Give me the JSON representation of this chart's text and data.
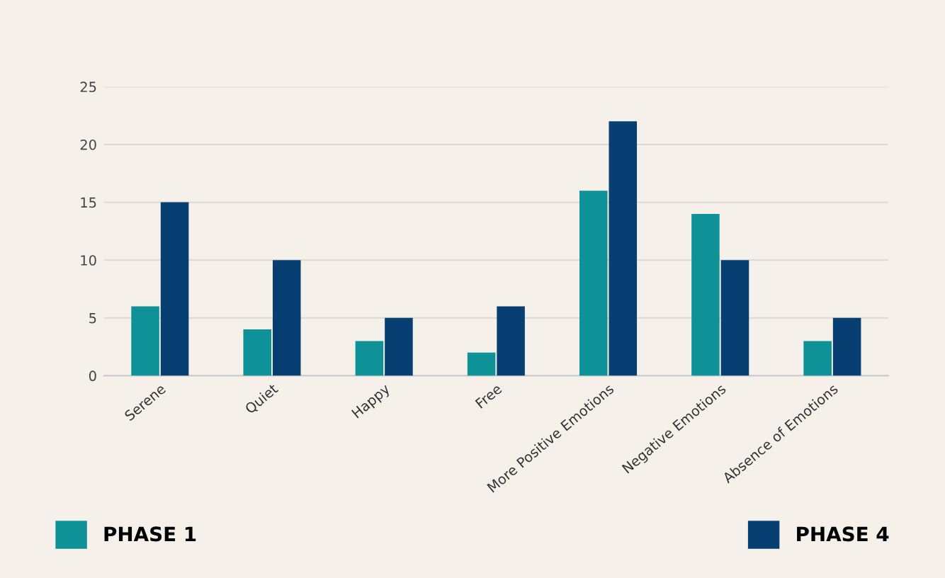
{
  "chart_data": {
    "type": "bar",
    "categories": [
      "Serene",
      "Quiet",
      "Happy",
      "Free",
      "More Positive Emotions",
      "Negative Emotions",
      "Absence of Emotions"
    ],
    "series": [
      {
        "name": "PHASE 1",
        "color": "#0e9297",
        "values": [
          6,
          4,
          3,
          2,
          16,
          14,
          3
        ]
      },
      {
        "name": "PHASE 4",
        "color": "#083f73",
        "values": [
          15,
          10,
          5,
          6,
          22,
          10,
          5
        ]
      }
    ],
    "ylim": [
      0,
      25
    ],
    "yticks": [
      0,
      5,
      10,
      15,
      20,
      25
    ],
    "grid": "y",
    "legend": "bottom"
  }
}
